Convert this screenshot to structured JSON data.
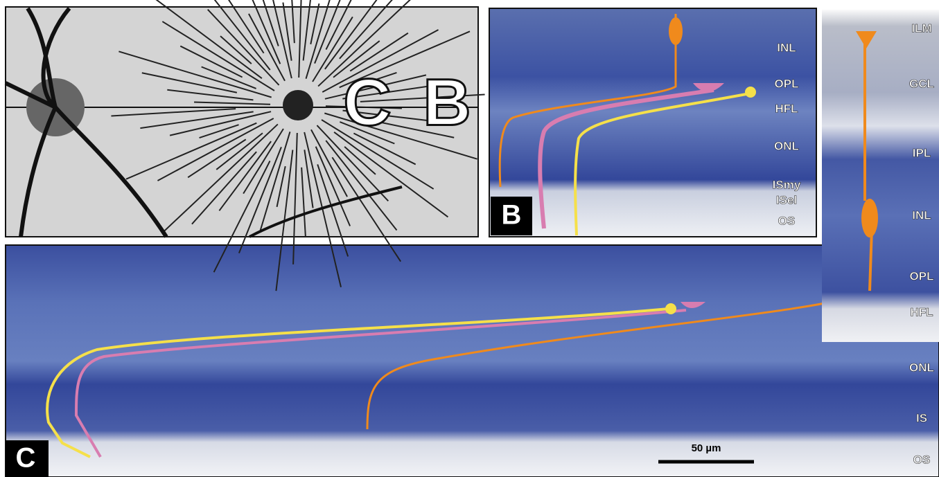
{
  "schematic": {
    "labels": [
      "C",
      "B"
    ]
  },
  "panel_b": {
    "letter": "B",
    "layers": [
      "INL",
      "OPL",
      "HFL",
      "ONL",
      "ISmy",
      "ISel",
      "OS"
    ]
  },
  "panel_right": {
    "layers": [
      "ILM",
      "GCL",
      "IPL",
      "INL",
      "OPL",
      "HFL",
      "ONL",
      "IS",
      "OS"
    ]
  },
  "panel_c": {
    "letter": "C",
    "scale_bar": "50 µm"
  }
}
